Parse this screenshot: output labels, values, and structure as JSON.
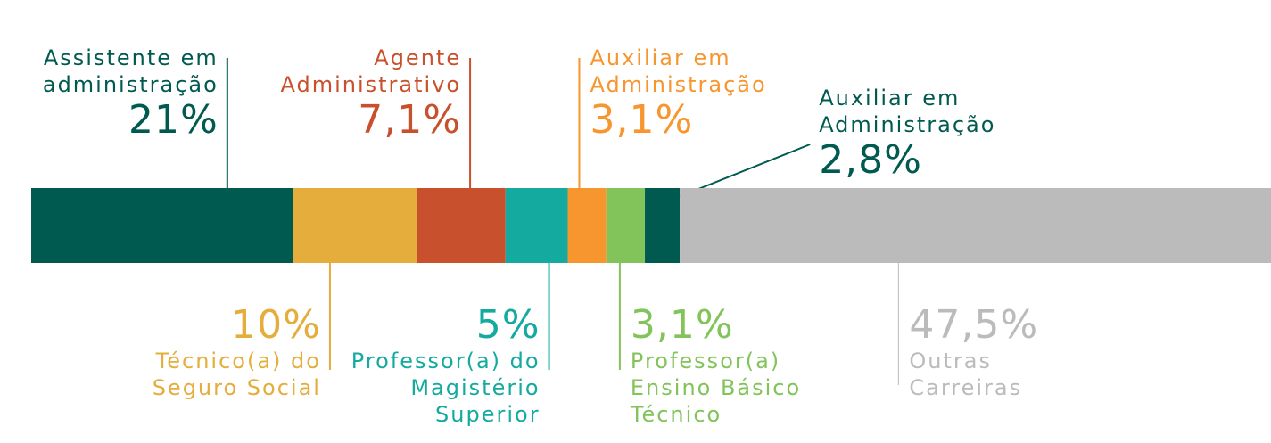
{
  "chart_data": {
    "type": "stacked-bar",
    "series": [
      {
        "name": "Assistente em administração",
        "color": "#005a50",
        "values": [
          21
        ],
        "value_labels": [
          "21%"
        ]
      },
      {
        "name": "Técnico(a) do Seguro Social",
        "color": "#e4ad3c",
        "values": [
          10
        ],
        "value_labels": [
          "10%"
        ]
      },
      {
        "name": "Agente Administrativo",
        "color": "#c8502c",
        "values": [
          7.1
        ],
        "value_labels": [
          "7,1%"
        ]
      },
      {
        "name": "Professor(a) do Magistério Superior",
        "color": "#14aaa0",
        "values": [
          5
        ],
        "value_labels": [
          "5%"
        ]
      },
      {
        "name": "Auxiliar em Administração",
        "color": "#f7962f",
        "values": [
          3.1
        ],
        "value_labels": [
          "3,1%"
        ]
      },
      {
        "name": "Professor(a) Ensino Básico Técnico",
        "color": "#82c35a",
        "values": [
          3.1
        ],
        "value_labels": [
          "3,1%"
        ]
      },
      {
        "name": "Auxiliar em Administração",
        "color": "#005a50",
        "values": [
          2.8
        ],
        "value_labels": [
          "2,8%"
        ]
      },
      {
        "name": "Outras Carreiras",
        "color": "#bbbbbb",
        "values": [
          47.5
        ],
        "value_labels": [
          "47,5%"
        ]
      }
    ]
  }
}
